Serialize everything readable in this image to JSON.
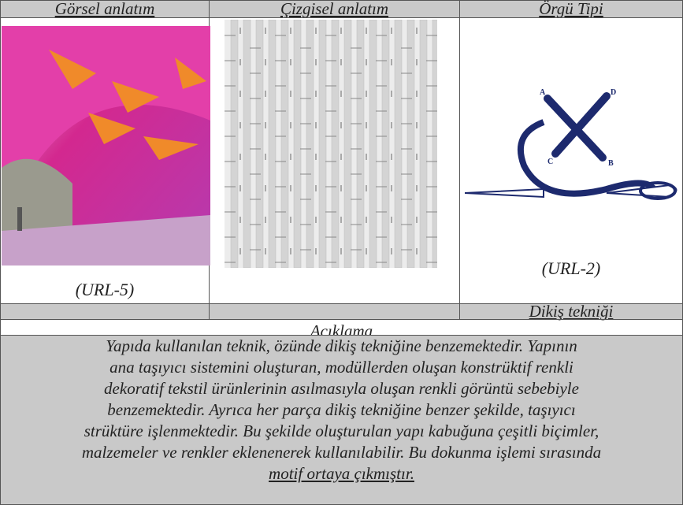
{
  "table": {
    "headers": [
      "Görsel anlatım",
      "Çizgisel anlatım",
      "Örgü Tipi"
    ],
    "captions": [
      "(URL-5)",
      "(URL-2)"
    ],
    "row_label": "Dikiş tekniği",
    "diagram_labels": [
      "A",
      "D",
      "C",
      "B"
    ],
    "section_title": "Açıklama",
    "description": [
      "Yapıda kullanılan teknik, özünde dikiş tekniğine benzemektedir. Yapının",
      "ana taşıyıcı sistemini oluşturan, modüllerden oluşan konstrüktif renkli",
      "dekoratif tekstil ürünlerinin asılmasıyla oluşan renkli görüntü sebebiyle",
      "benzemektedir. Ayrıca her parça dikiş tekniğine benzer şekilde, taşıyıcı",
      "strüktüre işlenmektedir. Bu şekilde oluşturulan yapı kabuğuna çeşitli biçimler,",
      "malzemeler ve renkler eklenenerek kullanılabilir. Bu dokunma işlemi sırasında",
      "motif ortaya çıkmıştır."
    ]
  }
}
